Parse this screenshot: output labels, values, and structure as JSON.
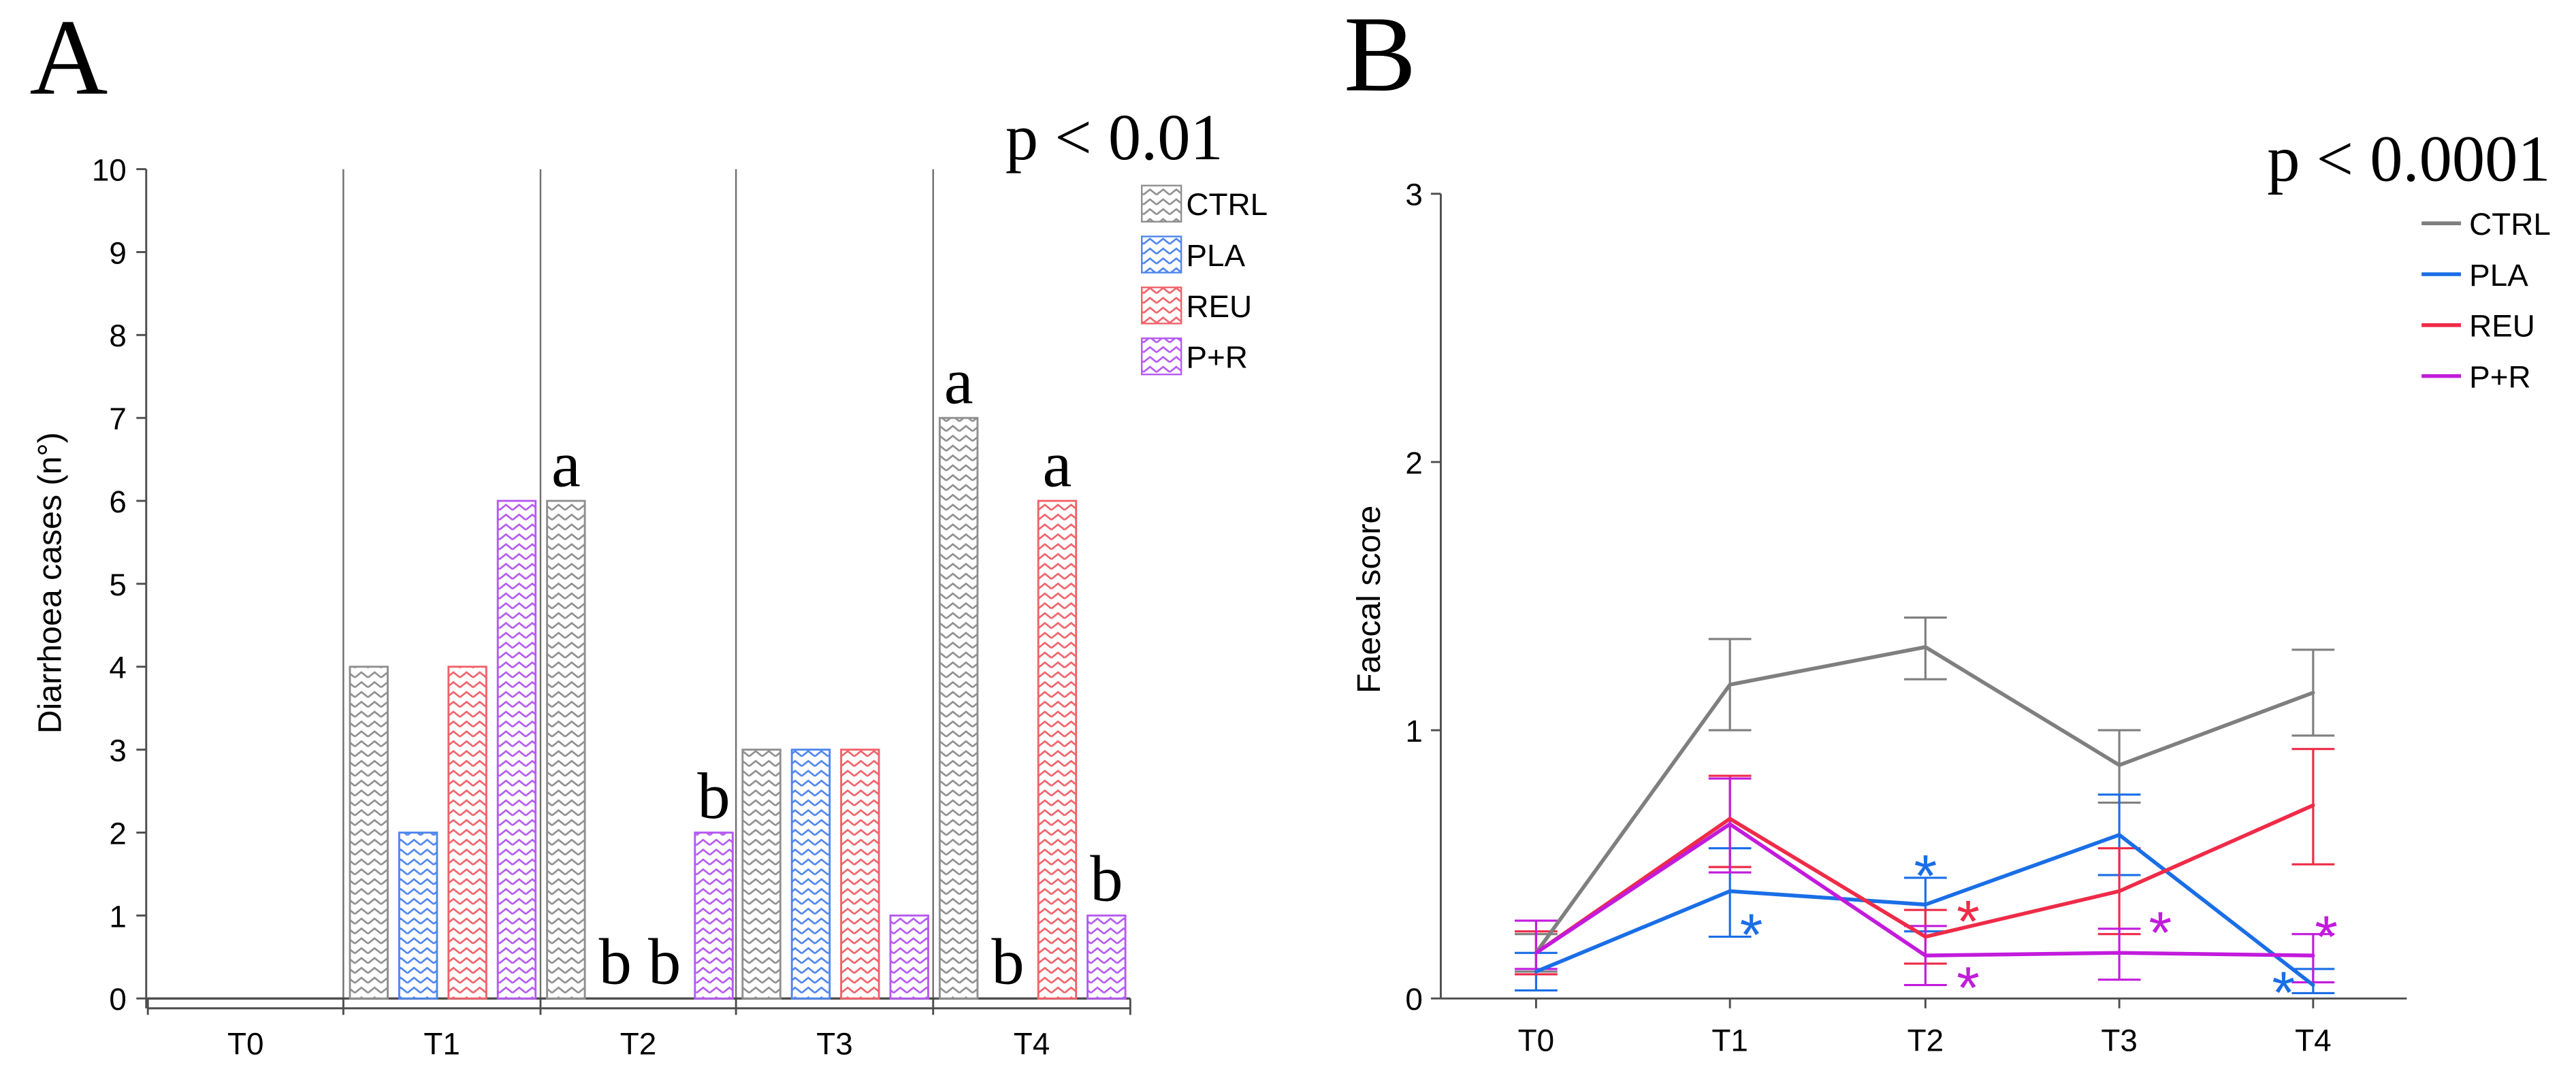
{
  "chart_data": [
    {
      "type": "bar",
      "panel_label": "A",
      "annotation": "p < 0.01",
      "ylabel": "Diarrhoea cases (n°)",
      "ylim": [
        0,
        10
      ],
      "yticks": [
        0,
        1,
        2,
        3,
        4,
        5,
        6,
        7,
        8,
        9,
        10
      ],
      "grid": false,
      "legend_position": "top-right",
      "categories": [
        "T0",
        "T1",
        "T2",
        "T3",
        "T4"
      ],
      "series": [
        {
          "name": "CTRL",
          "color": "#8f8f8f",
          "values": [
            0,
            4,
            6,
            3,
            7
          ],
          "letters": [
            null,
            null,
            "a",
            null,
            "a"
          ]
        },
        {
          "name": "PLA",
          "color": "#4f86ec",
          "values": [
            0,
            2,
            0,
            3,
            0
          ],
          "letters": [
            null,
            null,
            "b",
            null,
            "b"
          ]
        },
        {
          "name": "REU",
          "color": "#f0626a",
          "values": [
            0,
            4,
            0,
            3,
            6
          ],
          "letters": [
            null,
            null,
            "b",
            null,
            "a"
          ]
        },
        {
          "name": "P+R",
          "color": "#b55af0",
          "values": [
            0,
            6,
            2,
            1,
            1
          ],
          "letters": [
            null,
            null,
            "b",
            null,
            "b"
          ]
        }
      ]
    },
    {
      "type": "line",
      "panel_label": "B",
      "annotation": "p < 0.0001",
      "ylabel": "Faecal score",
      "ylim": [
        0,
        3
      ],
      "yticks": [
        0,
        1,
        2,
        3
      ],
      "grid": false,
      "legend_position": "top-right",
      "x": [
        "T0",
        "T1",
        "T2",
        "T3",
        "T4"
      ],
      "significance_marker": "*",
      "series": [
        {
          "name": "CTRL",
          "color": "#7f7f7f",
          "values": [
            0.17,
            1.17,
            1.31,
            0.87,
            1.14
          ],
          "error_low": [
            0.1,
            1.0,
            1.19,
            0.73,
            0.98
          ],
          "error_high": [
            0.24,
            1.34,
            1.42,
            1.0,
            1.3
          ],
          "significant": [
            false,
            false,
            false,
            false,
            false
          ]
        },
        {
          "name": "PLA",
          "color": "#1a6ee6",
          "values": [
            0.1,
            0.4,
            0.35,
            0.61,
            0.05
          ],
          "error_low": [
            0.03,
            0.23,
            0.25,
            0.46,
            0.02
          ],
          "error_high": [
            0.17,
            0.56,
            0.45,
            0.76,
            0.11
          ],
          "significant": [
            false,
            true,
            true,
            false,
            true
          ]
        },
        {
          "name": "REU",
          "color": "#ee2b48",
          "values": [
            0.17,
            0.67,
            0.23,
            0.4,
            0.72
          ],
          "error_low": [
            0.09,
            0.49,
            0.13,
            0.24,
            0.5
          ],
          "error_high": [
            0.25,
            0.83,
            0.33,
            0.56,
            0.93
          ],
          "significant": [
            false,
            false,
            true,
            false,
            false
          ]
        },
        {
          "name": "P+R",
          "color": "#c21bdc",
          "values": [
            0.17,
            0.65,
            0.16,
            0.17,
            0.16
          ],
          "error_low": [
            0.11,
            0.47,
            0.05,
            0.07,
            0.06
          ],
          "error_high": [
            0.29,
            0.82,
            0.27,
            0.26,
            0.24
          ],
          "significant": [
            false,
            false,
            true,
            true,
            true
          ]
        }
      ]
    }
  ]
}
